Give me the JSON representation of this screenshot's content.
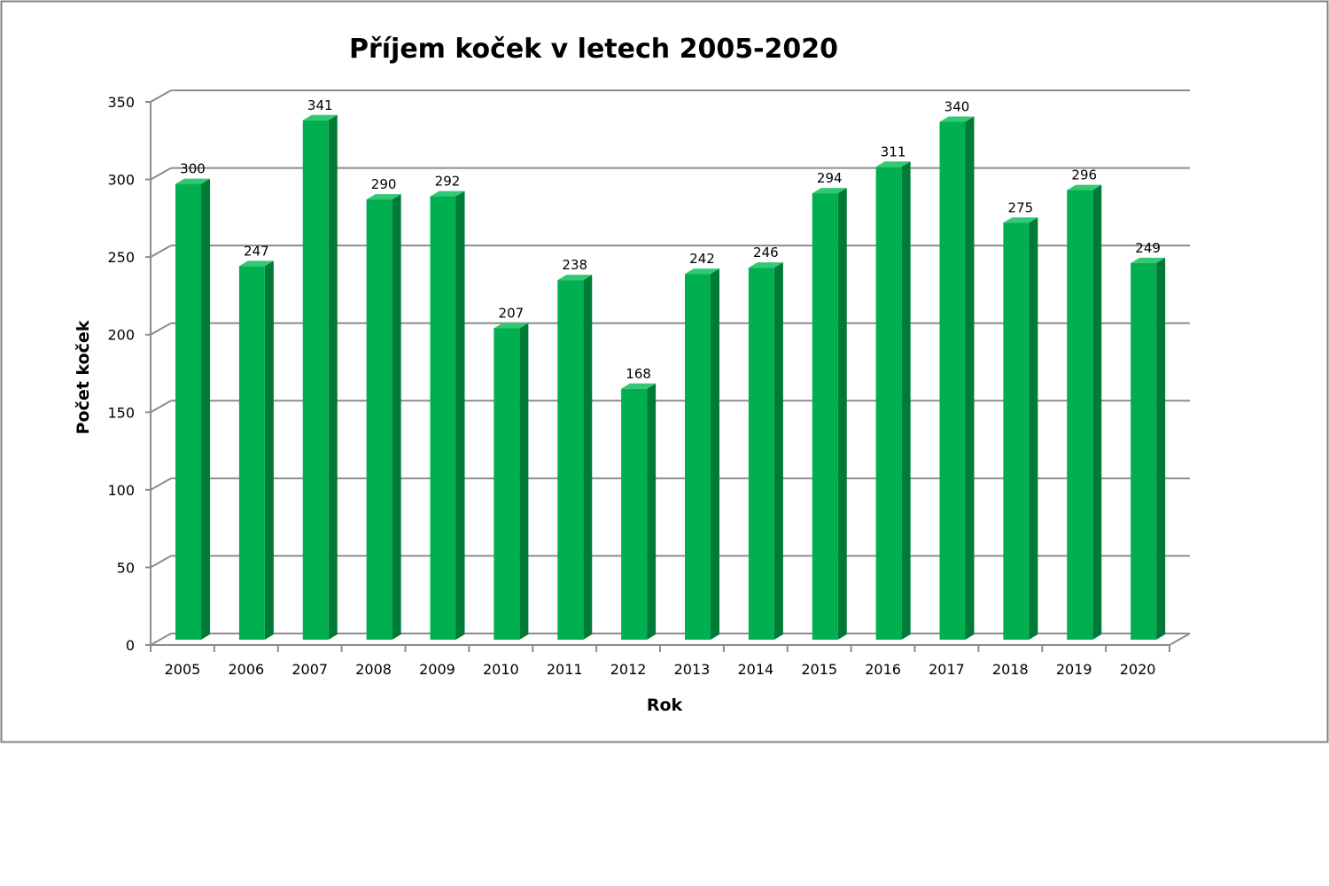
{
  "colors": {
    "bar_front": "#00B050",
    "bar_side": "#007A37",
    "bar_top": "#33C873",
    "gridline": "#8C8C8C",
    "frame_border": "#808080"
  },
  "chart_data": {
    "type": "bar",
    "title": "Příjem koček v letech 2005-2020",
    "xlabel": "Rok",
    "ylabel": "Počet  koček",
    "categories": [
      "2005",
      "2006",
      "2007",
      "2008",
      "2009",
      "2010",
      "2011",
      "2012",
      "2013",
      "2014",
      "2015",
      "2016",
      "2017",
      "2018",
      "2019",
      "2020"
    ],
    "values": [
      300,
      247,
      341,
      290,
      292,
      207,
      238,
      168,
      242,
      246,
      294,
      311,
      340,
      275,
      296,
      249
    ],
    "data_labels": [
      "300",
      "247",
      "341",
      "290",
      "292",
      "207",
      "238",
      "168",
      "242",
      "246",
      "294",
      "311",
      "340",
      "275",
      "296",
      "249"
    ],
    "ylim": [
      0,
      350
    ],
    "yticks": [
      0,
      50,
      100,
      150,
      200,
      250,
      300,
      350
    ],
    "ytick_labels": [
      "0",
      "50",
      "100",
      "150",
      "200",
      "250",
      "300",
      "350"
    ],
    "grid": true,
    "legend": "none",
    "style": "3d-column"
  }
}
